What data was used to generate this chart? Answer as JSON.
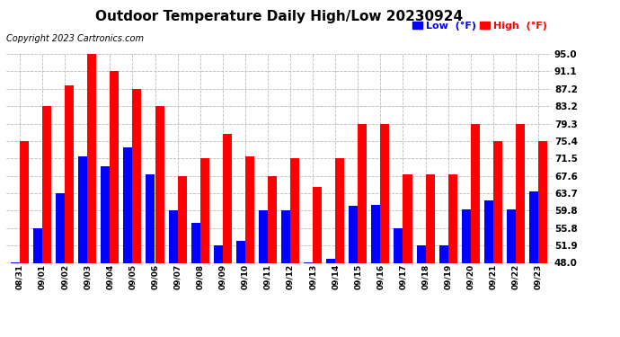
{
  "title": "Outdoor Temperature Daily High/Low 20230924",
  "copyright": "Copyright 2023 Cartronics.com",
  "legend_low": "Low  (°F)",
  "legend_high": "High  (°F)",
  "low_color": "#0000ff",
  "high_color": "#ff0000",
  "dates": [
    "08/31",
    "09/01",
    "09/02",
    "09/03",
    "09/04",
    "09/05",
    "09/06",
    "09/07",
    "09/08",
    "09/09",
    "09/10",
    "09/11",
    "09/12",
    "09/13",
    "09/14",
    "09/15",
    "09/16",
    "09/17",
    "09/18",
    "09/19",
    "09/20",
    "09/21",
    "09/22",
    "09/23"
  ],
  "highs": [
    75.4,
    83.2,
    88.0,
    95.0,
    91.1,
    87.2,
    83.2,
    67.6,
    71.5,
    77.0,
    72.0,
    67.6,
    71.5,
    65.0,
    71.5,
    79.3,
    79.3,
    68.0,
    68.0,
    68.0,
    79.3,
    75.4,
    79.3,
    75.4
  ],
  "lows": [
    48.2,
    55.8,
    63.7,
    72.0,
    69.8,
    74.0,
    68.0,
    59.8,
    57.0,
    51.9,
    53.0,
    59.8,
    59.8,
    48.2,
    49.0,
    60.8,
    61.0,
    55.8,
    52.0,
    52.0,
    60.0,
    62.0,
    60.0,
    64.0
  ],
  "ylim_min": 48.0,
  "ylim_max": 95.0,
  "yticks": [
    48.0,
    51.9,
    55.8,
    59.8,
    63.7,
    67.6,
    71.5,
    75.4,
    79.3,
    83.2,
    87.2,
    91.1,
    95.0
  ],
  "ytick_labels": [
    "48.0",
    "51.9",
    "55.8",
    "59.8",
    "63.7",
    "67.6",
    "71.5",
    "75.4",
    "79.3",
    "83.2",
    "87.2",
    "91.1",
    "95.0"
  ],
  "background_color": "#ffffff",
  "grid_color": "#bbbbbb",
  "title_fontsize": 11,
  "copyright_fontsize": 7,
  "legend_fontsize": 8,
  "xtick_fontsize": 6.5,
  "ytick_fontsize": 7.5
}
